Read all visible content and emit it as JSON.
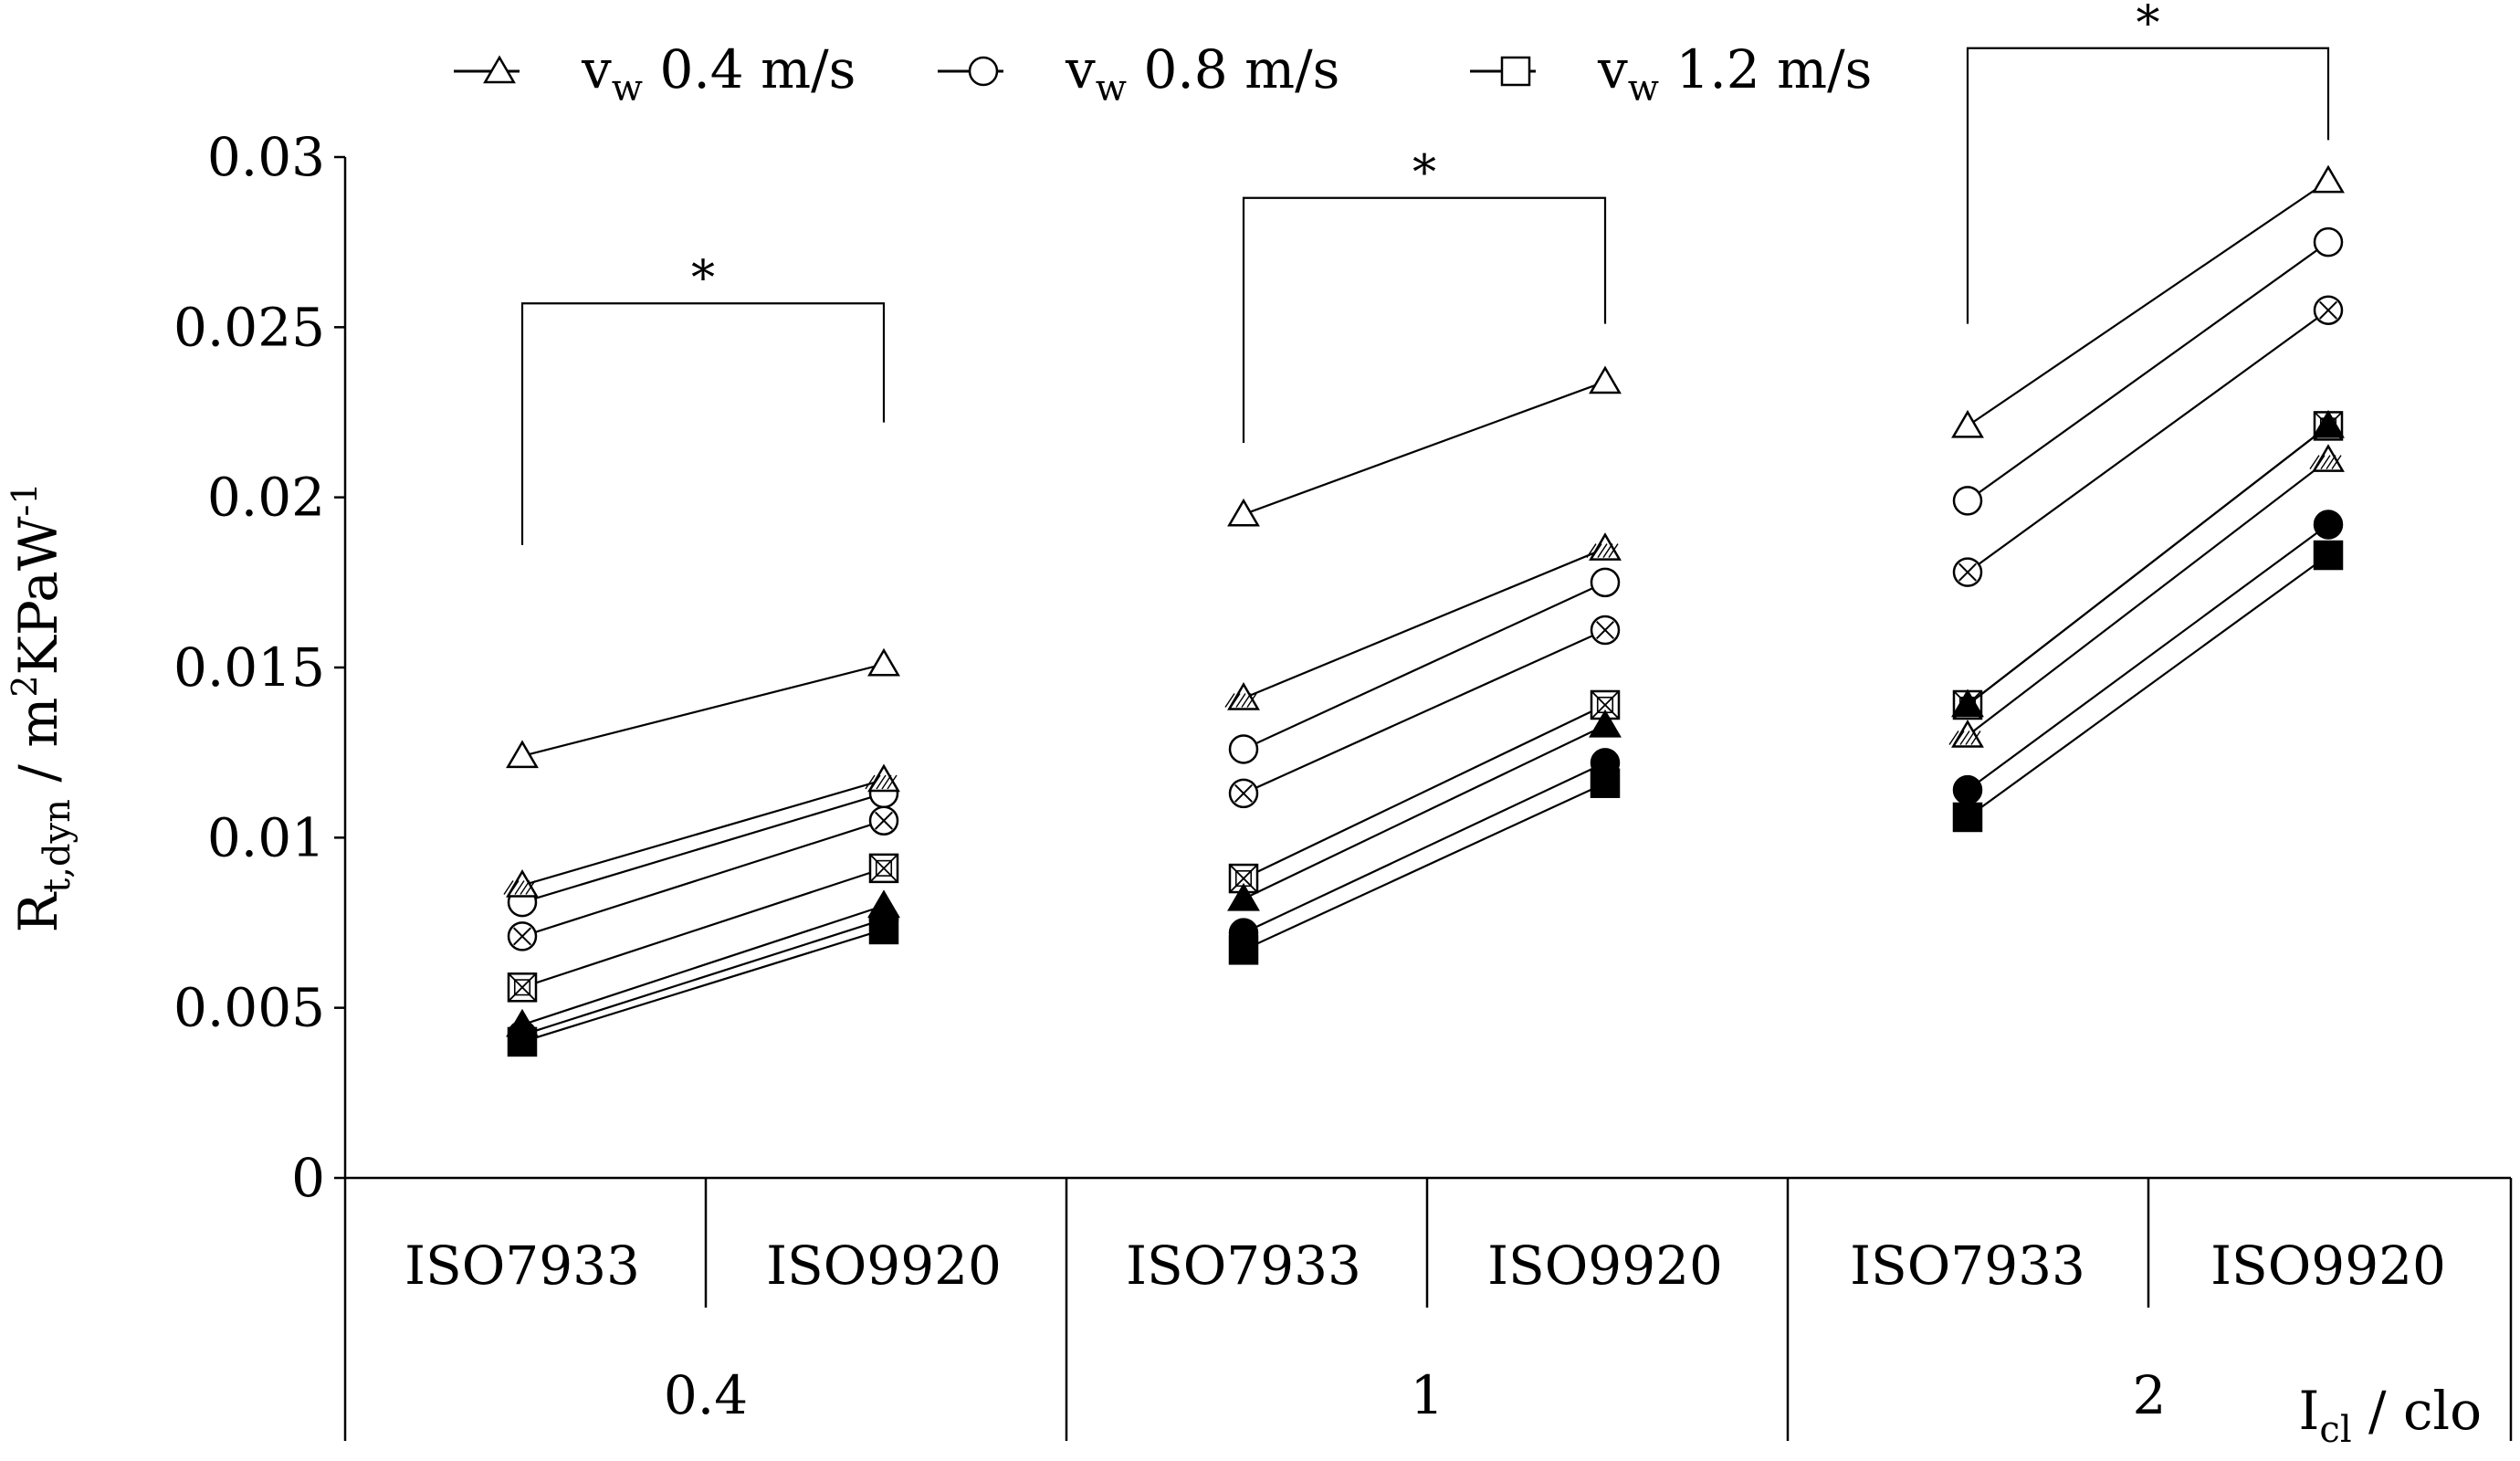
{
  "chart_data": {
    "type": "line",
    "ylabel": {
      "main": "R",
      "sub": "t,dyn",
      "rest": " / m",
      "sup1": "2",
      "rest2": "KPaW",
      "sup2": "-1"
    },
    "xlabel": {
      "main": "I",
      "sub": "cl",
      "rest": " / clo"
    },
    "ylim": [
      0,
      0.03
    ],
    "yticks": [
      "0",
      "0.005",
      "0.01",
      "0.015",
      "0.02",
      "0.025",
      "0.03"
    ],
    "ytick_values": [
      0,
      0.005,
      0.01,
      0.015,
      0.02,
      0.025,
      0.03
    ],
    "groups": [
      {
        "label": "0.4",
        "methods": [
          "ISO7933",
          "ISO9920"
        ]
      },
      {
        "label": "1",
        "methods": [
          "ISO7933",
          "ISO9920"
        ]
      },
      {
        "label": "2",
        "methods": [
          "ISO7933",
          "ISO9920"
        ]
      }
    ],
    "legend": [
      {
        "marker": "triangle",
        "v": "v",
        "sub": "w",
        "text": " 0.4 m/s"
      },
      {
        "marker": "circle",
        "v": "v",
        "sub": "w",
        "text": " 0.8 m/s"
      },
      {
        "marker": "square",
        "v": "v",
        "sub": "w",
        "text": "  1.2 m/s"
      }
    ],
    "legend_placement": "top",
    "grid": false,
    "series": [
      {
        "marker": "triangle",
        "fill": "white",
        "values": [
          [
            0.0124,
            0.0151
          ],
          [
            0.0195,
            0.0234
          ],
          [
            0.0221,
            0.0293
          ]
        ]
      },
      {
        "marker": "circle",
        "fill": "white",
        "values": [
          [
            0.0081,
            0.0113
          ],
          [
            0.0126,
            0.0175
          ],
          [
            0.0199,
            0.0275
          ]
        ]
      },
      {
        "marker": "circle",
        "fill": "crossed",
        "values": [
          [
            0.0071,
            0.0105
          ],
          [
            0.0113,
            0.0161
          ],
          [
            0.0178,
            0.0255
          ]
        ]
      },
      {
        "marker": "triangle",
        "fill": "hatched",
        "values": [
          [
            0.0086,
            0.0117
          ],
          [
            0.0141,
            0.0185
          ],
          [
            0.013,
            0.0211
          ]
        ]
      },
      {
        "marker": "square",
        "fill": "crossed",
        "values": [
          [
            0.0056,
            0.0091
          ],
          [
            0.0088,
            0.0139
          ],
          [
            0.0139,
            0.0221
          ]
        ]
      },
      {
        "marker": "triangle",
        "fill": "black",
        "values": [
          [
            0.0045,
            0.008
          ],
          [
            0.0082,
            0.0133
          ],
          [
            0.0139,
            0.0221
          ]
        ]
      },
      {
        "marker": "circle",
        "fill": "black",
        "values": [
          [
            0.0042,
            0.0076
          ],
          [
            0.0072,
            0.0122
          ],
          [
            0.0114,
            0.0192
          ]
        ]
      },
      {
        "marker": "square",
        "fill": "black",
        "values": [
          [
            0.004,
            0.0073
          ],
          [
            0.0067,
            0.0116
          ],
          [
            0.0106,
            0.0183
          ]
        ]
      }
    ],
    "annotations": [
      {
        "text": "*",
        "group": 0,
        "left_y": 0.0186,
        "right_y": 0.0222,
        "bracket_y": 0.0257
      },
      {
        "text": "*",
        "group": 1,
        "left_y": 0.0216,
        "right_y": 0.0251,
        "bracket_y": 0.0288
      },
      {
        "text": "*",
        "group": 2,
        "left_y": 0.0251,
        "right_y": 0.0305,
        "bracket_y": 0.0332
      }
    ]
  }
}
